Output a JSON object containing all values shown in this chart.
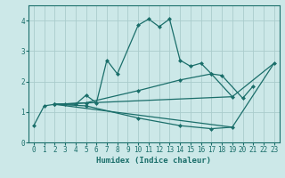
{
  "xlabel": "Humidex (Indice chaleur)",
  "bg_color": "#cce8e8",
  "grid_color": "#aacccc",
  "line_color": "#1a6e6a",
  "xlim": [
    -0.5,
    23.5
  ],
  "ylim": [
    0,
    4.5
  ],
  "xticks": [
    0,
    1,
    2,
    3,
    4,
    5,
    6,
    7,
    8,
    9,
    10,
    11,
    12,
    13,
    14,
    15,
    16,
    17,
    18,
    19,
    20,
    21,
    22,
    23
  ],
  "yticks": [
    0,
    1,
    2,
    3,
    4
  ],
  "line1_x": [
    0,
    1,
    2,
    3,
    4,
    5,
    6,
    7,
    8,
    10,
    11,
    12,
    13,
    14,
    15,
    16,
    17,
    18,
    20,
    21,
    22,
    23
  ],
  "line1_y": [
    0.55,
    1.2,
    1.25,
    1.25,
    1.25,
    1.55,
    1.3,
    2.7,
    2.25,
    3.85,
    4.05,
    3.8,
    4.05,
    2.7,
    2.5,
    2.6,
    2.25,
    2.2,
    1.45,
    1.85,
    null,
    2.6
  ],
  "line2_x": [
    2,
    19,
    23
  ],
  "line2_y": [
    1.25,
    1.5,
    2.6
  ],
  "line3_x": [
    2,
    19,
    23
  ],
  "line3_y": [
    1.25,
    0.5,
    2.6
  ],
  "line2b_x": [
    2,
    5,
    10,
    14,
    17,
    19
  ],
  "line2b_y": [
    1.25,
    1.3,
    1.7,
    2.05,
    2.25,
    1.5
  ],
  "line3b_x": [
    2,
    5,
    10,
    14,
    17,
    19
  ],
  "line3b_y": [
    1.25,
    1.2,
    0.8,
    0.55,
    0.45,
    0.5
  ]
}
